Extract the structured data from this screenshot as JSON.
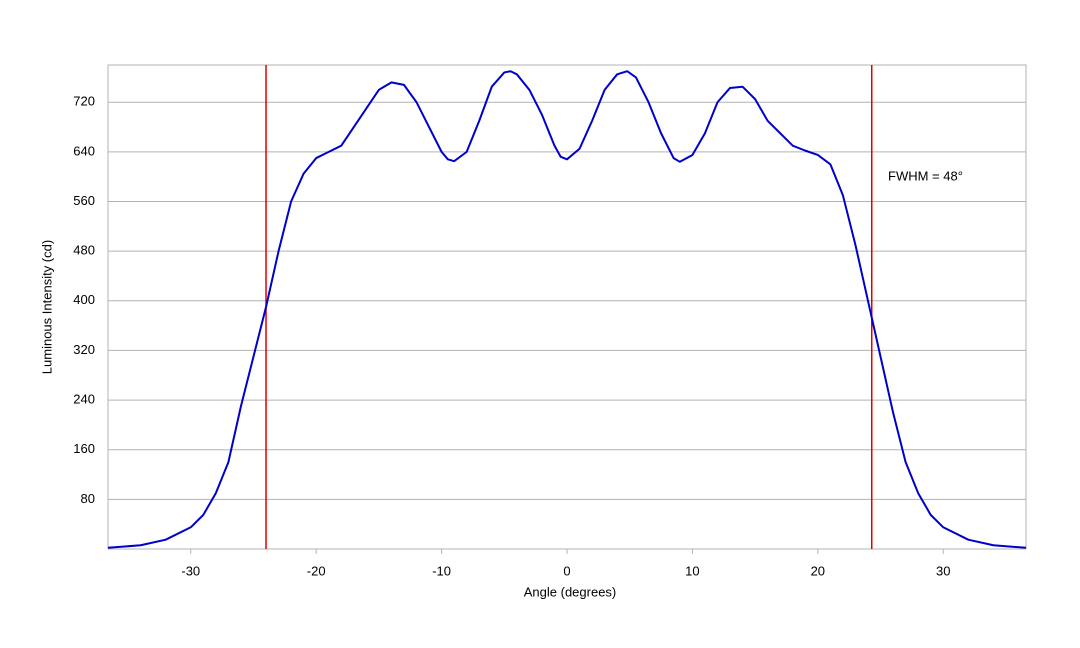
{
  "chart_data": {
    "type": "line",
    "x_label": "Angle (degrees)",
    "y_label": "Luminous Intensity (cd)",
    "annotation": "FWHM = 48°",
    "x": [
      -36.6,
      -34,
      -32,
      -30,
      -29,
      -28,
      -27,
      -26,
      -25,
      -24,
      -23,
      -22,
      -21,
      -20,
      -19,
      -18,
      -17,
      -16,
      -15,
      -14,
      -13,
      -12,
      -11,
      -10,
      -9.5,
      -9,
      -8,
      -7,
      -6,
      -5,
      -4.5,
      -4,
      -3,
      -2,
      -1,
      -0.5,
      0,
      1,
      2,
      3,
      4,
      4.8,
      5.5,
      6.5,
      7.5,
      8.5,
      9,
      10,
      11,
      12,
      13,
      14,
      15,
      16,
      17,
      18,
      19,
      20,
      21,
      22,
      23,
      24,
      25,
      26,
      27,
      28,
      29,
      30,
      32,
      34,
      36.6
    ],
    "values": [
      2,
      6,
      15,
      35,
      55,
      90,
      140,
      230,
      310,
      390,
      480,
      560,
      605,
      630,
      640,
      650,
      680,
      710,
      740,
      752,
      748,
      720,
      680,
      640,
      628,
      625,
      640,
      690,
      745,
      768,
      770,
      765,
      740,
      700,
      650,
      632,
      628,
      645,
      690,
      740,
      765,
      770,
      760,
      720,
      670,
      630,
      624,
      635,
      670,
      720,
      743,
      745,
      725,
      690,
      670,
      650,
      642,
      635,
      620,
      570,
      490,
      400,
      310,
      220,
      140,
      90,
      55,
      35,
      15,
      6,
      2
    ],
    "color": "#0000cc",
    "vlines": [
      -24,
      24.3
    ],
    "vline_color": "#e00000",
    "xlim": [
      -36.6,
      36.6
    ],
    "xticks": [
      -30,
      -20,
      -10,
      0,
      10,
      20,
      30
    ],
    "ylim": [
      0,
      780
    ],
    "yticks": [
      80,
      160,
      240,
      320,
      400,
      480,
      560,
      640,
      720
    ],
    "grid": true
  }
}
